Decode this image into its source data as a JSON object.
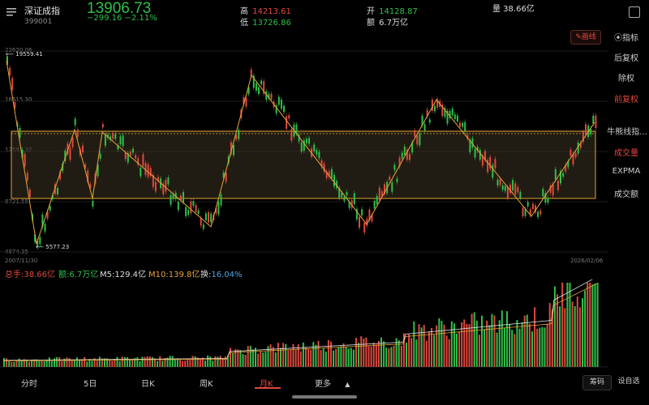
{
  "header": {
    "name": "深证成指",
    "code": "399001",
    "price": "13906.73",
    "change": "−299.16 −2.11%",
    "high_label": "高",
    "high": "14213.61",
    "low_label": "低",
    "low": "13726.86",
    "open_label": "开",
    "open": "14128.87",
    "amount_label": "额",
    "amount": "6.7万亿",
    "volume": "量 38.66亿"
  },
  "chart": {
    "draw_button": "✎画线",
    "indicator_button": "⦿指标",
    "y_ticks": [
      "22620.06",
      "16615.30",
      "12591.32",
      "8721.55",
      "4874.35"
    ],
    "max_marker": "19559.41",
    "min_marker": "5577.23",
    "date_start": "2007/11/30",
    "date_end": "2026/02/06"
  },
  "sidebar": {
    "items": [
      "后复权",
      "除权",
      "前复权",
      "牛熊线指...",
      "成交量",
      "EXPMA",
      "成交额"
    ]
  },
  "volume_legend": {
    "total": "总手:38.66亿",
    "amount": "额:6.7万亿",
    "m5": "M5:129.4亿",
    "m10": "M10:139.8亿",
    "turnover": "换:16.04%"
  },
  "tabs": [
    "分时",
    "5日",
    "日K",
    "周K",
    "月K",
    "更多"
  ],
  "buttons": {
    "chips": "筹码",
    "settings": "设自选"
  },
  "colors": {
    "up": "#e0483e",
    "down": "#2fbf4a",
    "fib": "#e6a33a"
  }
}
